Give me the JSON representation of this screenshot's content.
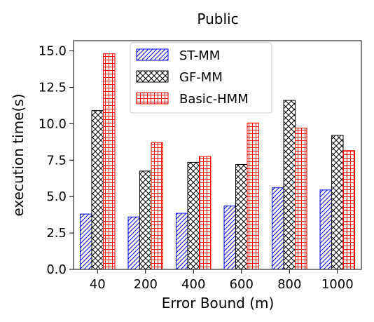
{
  "chart_data": {
    "type": "bar",
    "title": "Public",
    "xlabel": "Error Bound (m)",
    "ylabel": "execution time(s)",
    "categories": [
      "40",
      "200",
      "400",
      "600",
      "800",
      "1000"
    ],
    "ylim": [
      0,
      15.7
    ],
    "yticks": [
      "0.0",
      "2.5",
      "5.0",
      "7.5",
      "10.0",
      "12.5",
      "15.0"
    ],
    "legend_position": "top",
    "grid": false,
    "series": [
      {
        "name": "ST-MM",
        "color": "#0000ff",
        "pattern": "diagonal-hatch",
        "values": [
          3.8,
          3.6,
          3.85,
          4.35,
          5.6,
          5.45
        ]
      },
      {
        "name": "GF-MM",
        "color": "#000000",
        "pattern": "crosshatch",
        "values": [
          10.9,
          6.75,
          7.35,
          7.2,
          11.6,
          9.2
        ]
      },
      {
        "name": "Basic-HMM",
        "color": "#ff0000",
        "pattern": "grid",
        "values": [
          14.8,
          8.7,
          7.75,
          10.05,
          9.7,
          8.15
        ]
      }
    ]
  }
}
